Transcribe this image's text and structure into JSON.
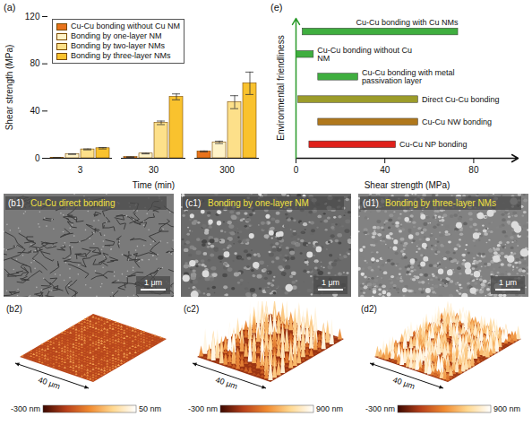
{
  "chart_data": [
    {
      "type": "bar",
      "title": "(a)",
      "x_label": "Time (min)",
      "y_label": "Shear strength (MPa)",
      "categories": [
        "3",
        "30",
        "300"
      ],
      "series": [
        {
          "name": "Cu-Cu bonding without Cu NM",
          "color": "#e8731c",
          "values": [
            0.4,
            1.0,
            5.8
          ],
          "errors": [
            0.1,
            0.2,
            0.4
          ]
        },
        {
          "name": "Bonding by one-layer NM",
          "color": "#fff3c8",
          "values": [
            3.5,
            4.0,
            13.5
          ],
          "errors": [
            0.2,
            0.3,
            1.0
          ]
        },
        {
          "name": "Bonding by two-layer NMs",
          "color": "#fde08a",
          "values": [
            7.5,
            30.0,
            47.5
          ],
          "errors": [
            0.4,
            1.5,
            5.5
          ]
        },
        {
          "name": "Bonding by three-layer NMs",
          "color": "#f9c22e",
          "values": [
            8.5,
            52.0,
            63.5
          ],
          "errors": [
            0.6,
            2.5,
            9.5
          ]
        }
      ],
      "ylim": [
        0,
        120
      ],
      "yticks": [
        0,
        40,
        80,
        120
      ],
      "legend": "top-left"
    },
    {
      "type": "range_bar",
      "title": "(e)",
      "x_label": "Shear strength (MPa)",
      "y_label": "Environmental friendliness",
      "categories": [
        "Cu-Cu bonding with Cu NMs",
        "Cu-Cu bonding without Cu NM",
        "Cu-Cu bonding with metal passivation layer",
        "Direct Cu-Cu bonding",
        "Cu-Cu NW bonding",
        "Cu-Cu NP bonding"
      ],
      "values": [
        [
          3,
          73
        ],
        [
          0,
          8
        ],
        [
          10,
          28
        ],
        [
          1,
          55
        ],
        [
          10,
          55
        ],
        [
          6,
          45
        ]
      ],
      "colors": [
        "#3fae3f",
        "#3fae3f",
        "#3fae3f",
        "#9c9c2a",
        "#b0781c",
        "#e0201b"
      ],
      "xlim": [
        0,
        100
      ],
      "xticks": [
        0,
        40,
        80
      ],
      "tick_labels": "x"
    }
  ],
  "sem_images": [
    {
      "label": "(b1)",
      "title": "Cu-Cu direct bonding",
      "scale_bar": "1 μm"
    },
    {
      "label": "(c1)",
      "title": "Bonding by one-layer NM",
      "scale_bar": "1 μm"
    },
    {
      "label": "(d1)",
      "title": "Bonding by three-layer NMs",
      "scale_bar": "1 μm"
    }
  ],
  "afm_images": [
    {
      "label": "(b2)",
      "size": "40 μm",
      "colorbar_labels": [
        "-300 nm",
        "50 nm"
      ]
    },
    {
      "label": "(c2)",
      "size": "40 μm",
      "colorbar_labels": [
        "-300 nm",
        "900 nm"
      ]
    },
    {
      "label": "(d2)",
      "size": "40 μm",
      "colorbar_labels": [
        "-300 nm",
        "900 nm"
      ]
    }
  ]
}
